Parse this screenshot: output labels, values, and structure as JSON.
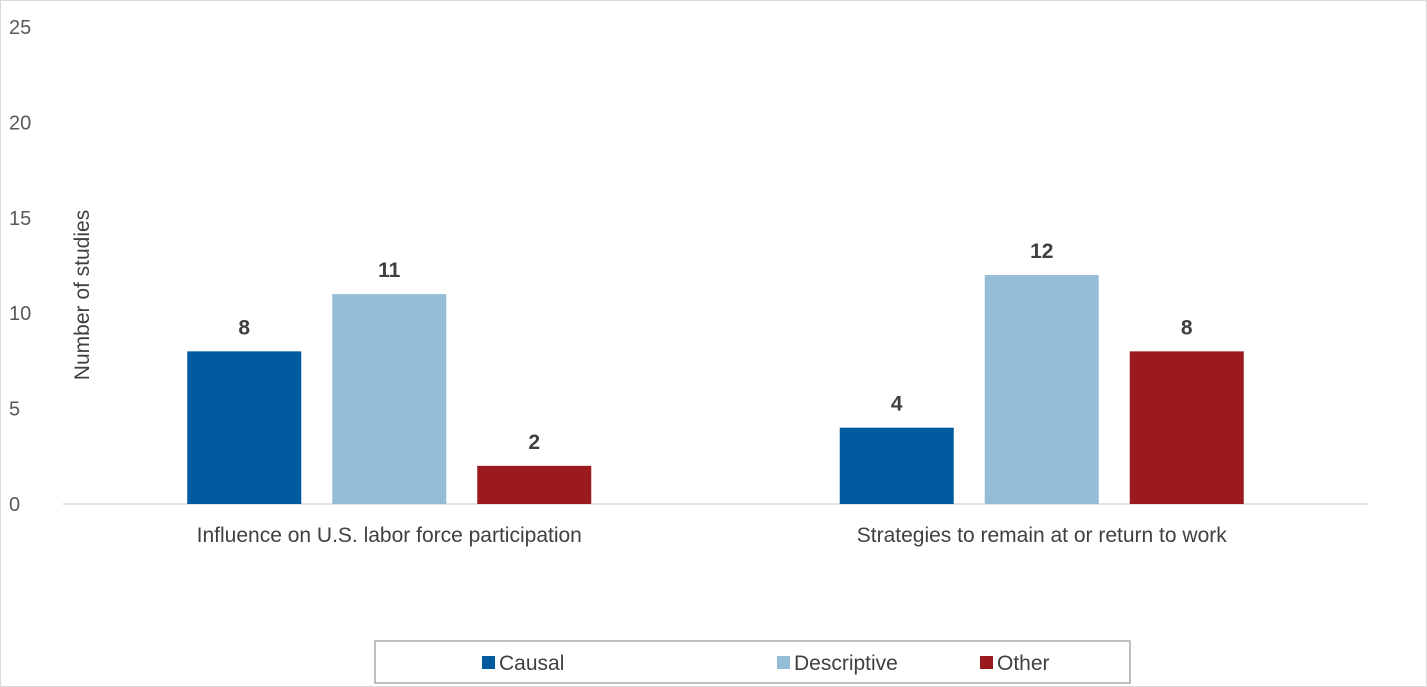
{
  "chart_data": {
    "type": "bar",
    "categories": [
      "Influence on U.S. labor force participation",
      "Strategies to remain at or return to work"
    ],
    "series": [
      {
        "name": "Causal",
        "values": [
          8,
          4
        ],
        "color": "#005b9f"
      },
      {
        "name": "Descriptive",
        "values": [
          11,
          12
        ],
        "color": "#95bcd6"
      },
      {
        "name": "Other",
        "values": [
          2,
          8
        ],
        "color": "#9a1a1e"
      }
    ],
    "ylabel": "Number of studies",
    "ylim": [
      0,
      25
    ],
    "yticks": [
      0,
      5,
      10,
      15,
      20,
      25
    ],
    "grid": false,
    "legend_position": "bottom",
    "data_labels": true
  }
}
